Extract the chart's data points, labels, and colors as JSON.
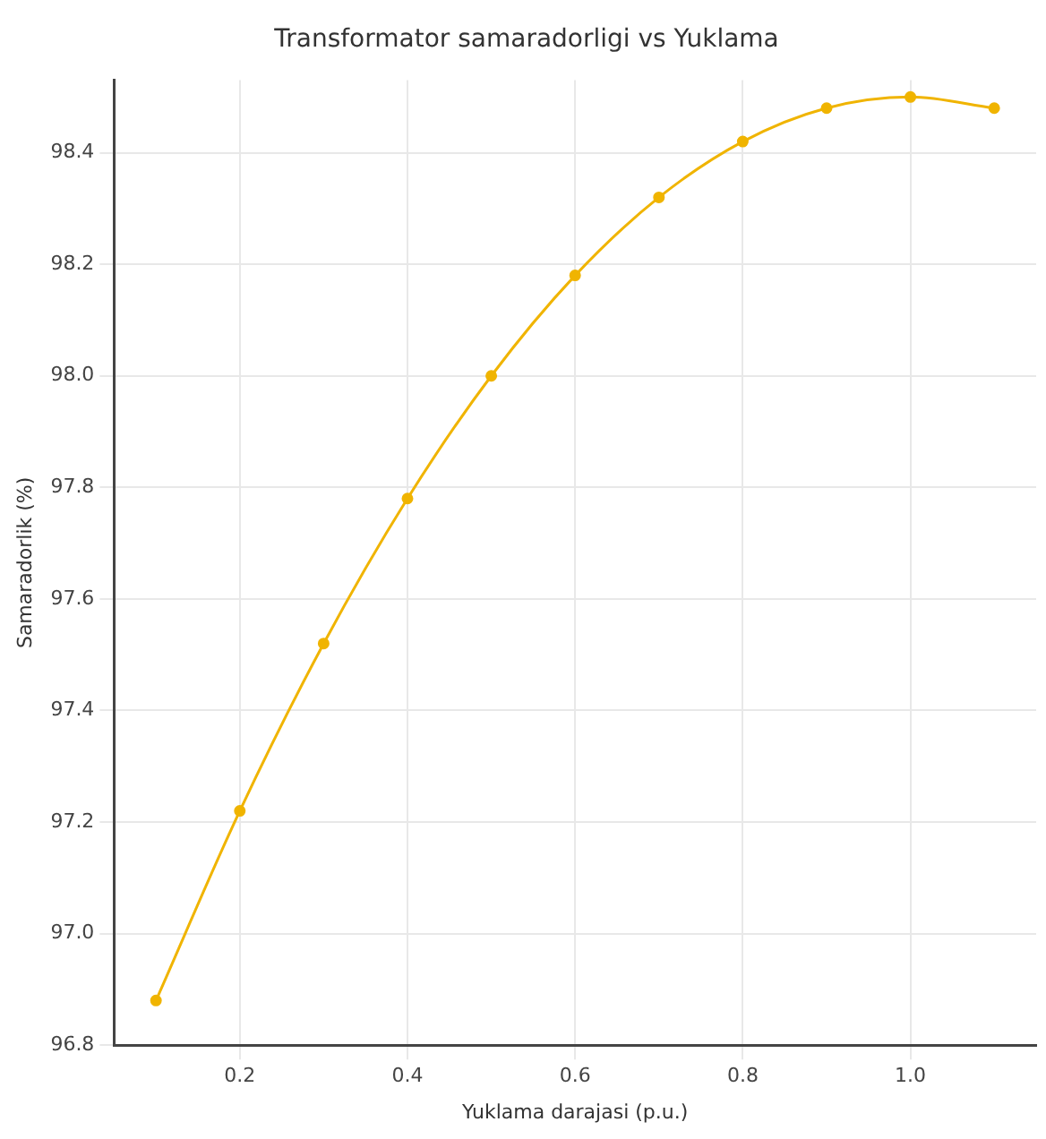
{
  "chart_data": {
    "type": "line",
    "title": "Transformator samaradorligi vs Yuklama",
    "xlabel": "Yuklama darajasi (p.u.)",
    "ylabel": "Samaradorlik (%)",
    "x": [
      0.1,
      0.2,
      0.3,
      0.4,
      0.5,
      0.6,
      0.7,
      0.8,
      0.9,
      1.0,
      1.1
    ],
    "series": [
      {
        "color": "#f0b400",
        "values": [
          96.88,
          97.22,
          97.52,
          97.78,
          98.0,
          98.18,
          98.32,
          98.42,
          98.48,
          98.5,
          98.48
        ]
      }
    ],
    "xlim": [
      0.05,
      1.15
    ],
    "xticks": [
      0.2,
      0.4,
      0.6,
      0.8,
      {
        "value": 1,
        "label": "1.0"
      }
    ],
    "ylim": [
      96.8,
      98.53
    ],
    "yticks": [
      96.8,
      {
        "value": 97,
        "label": "97.0"
      },
      97.2,
      97.4,
      97.6,
      97.8,
      {
        "value": 98,
        "label": "98.0"
      },
      98.2,
      98.4
    ],
    "grid": true,
    "legend": false,
    "marker": "circle",
    "line_style": "solid"
  }
}
